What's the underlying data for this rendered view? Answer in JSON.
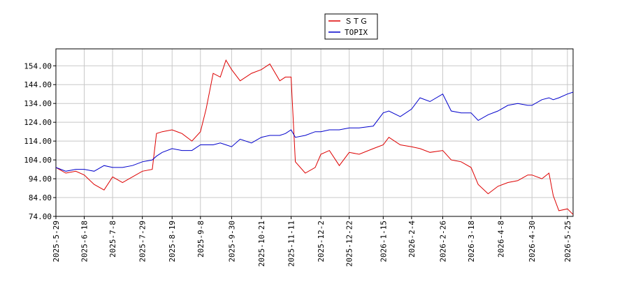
{
  "chart_data": {
    "type": "line",
    "x": [
      "2025-5-29",
      "2025-6-5",
      "2025-6-12",
      "2025-6-18",
      "2025-6-25",
      "2025-7-2",
      "2025-7-8",
      "2025-7-15",
      "2025-7-22",
      "2025-7-29",
      "2025-8-5",
      "2025-8-8",
      "2025-8-12",
      "2025-8-19",
      "2025-8-26",
      "2025-9-2",
      "2025-9-8",
      "2025-9-12",
      "2025-9-17",
      "2025-9-22",
      "2025-9-26",
      "2025-9-30",
      "2025-10-6",
      "2025-10-14",
      "2025-10-21",
      "2025-10-27",
      "2025-11-3",
      "2025-11-7",
      "2025-11-11",
      "2025-11-14",
      "2025-11-21",
      "2025-11-28",
      "2025-12-2",
      "2025-12-8",
      "2025-12-15",
      "2025-12-22",
      "2025-12-29",
      "2026-1-8",
      "2026-1-15",
      "2026-1-19",
      "2026-1-27",
      "2026-2-4",
      "2026-2-10",
      "2026-2-17",
      "2026-2-26",
      "2026-3-4",
      "2026-3-11",
      "2026-3-18",
      "2026-3-23",
      "2026-3-30",
      "2026-4-6",
      "2026-4-13",
      "2026-4-20",
      "2026-4-27",
      "2026-4-30",
      "2026-5-7",
      "2026-5-12",
      "2026-5-15",
      "2026-5-19",
      "2026-5-25",
      "2026-5-29"
    ],
    "series": [
      {
        "name": "ＳＴＧ",
        "color": "#dd0000",
        "values": [
          100,
          97,
          98,
          96,
          91,
          88,
          95,
          92,
          95,
          98,
          99,
          118,
          119,
          120,
          118,
          114,
          119,
          131,
          150,
          148,
          157,
          152,
          146,
          150,
          152,
          155,
          146,
          148,
          148,
          103,
          97,
          100,
          107,
          109,
          101,
          108,
          107,
          110,
          112,
          116,
          112,
          111,
          110,
          108,
          109,
          104,
          103,
          100,
          91,
          86,
          90,
          92,
          93,
          96,
          96,
          94,
          97,
          85,
          77,
          78,
          75
        ]
      },
      {
        "name": "TOPIX",
        "color": "#0000cc",
        "values": [
          100,
          98,
          99,
          99,
          98,
          101,
          100,
          100,
          101,
          103,
          104,
          106,
          108,
          110,
          109,
          109,
          112,
          112,
          112,
          113,
          112,
          111,
          115,
          113,
          116,
          117,
          117,
          118,
          120,
          116,
          117,
          119,
          119,
          120,
          120,
          121,
          121,
          122,
          129,
          130,
          127,
          131,
          137,
          135,
          139,
          130,
          129,
          129,
          125,
          128,
          130,
          133,
          134,
          133,
          133,
          136,
          137,
          136,
          137,
          139,
          140
        ]
      }
    ],
    "xlim": [
      "2025-5-29",
      "2026-5-29"
    ],
    "xticks": [
      "2025-5-29",
      "2025-6-18",
      "2025-7-8",
      "2025-7-29",
      "2025-8-19",
      "2025-9-8",
      "2025-9-30",
      "2025-10-21",
      "2025-11-11",
      "2025-12-2",
      "2025-12-22",
      "2026-1-15",
      "2026-2-4",
      "2026-2-26",
      "2026-3-18",
      "2026-4-8",
      "2026-4-30",
      "2026-5-25"
    ],
    "ylim": [
      74,
      163
    ],
    "yticks": [
      {
        "value": 74,
        "label": "74.00"
      },
      {
        "value": 84,
        "label": "84.00"
      },
      {
        "value": 94,
        "label": "94.00"
      },
      {
        "value": 104,
        "label": "104.00"
      },
      {
        "value": 114,
        "label": "114.00"
      },
      {
        "value": 124,
        "label": "124.00"
      },
      {
        "value": 134,
        "label": "134.00"
      },
      {
        "value": 144,
        "label": "144.00"
      },
      {
        "value": 154,
        "label": "154.00"
      }
    ],
    "grid": true,
    "legend": "top"
  }
}
